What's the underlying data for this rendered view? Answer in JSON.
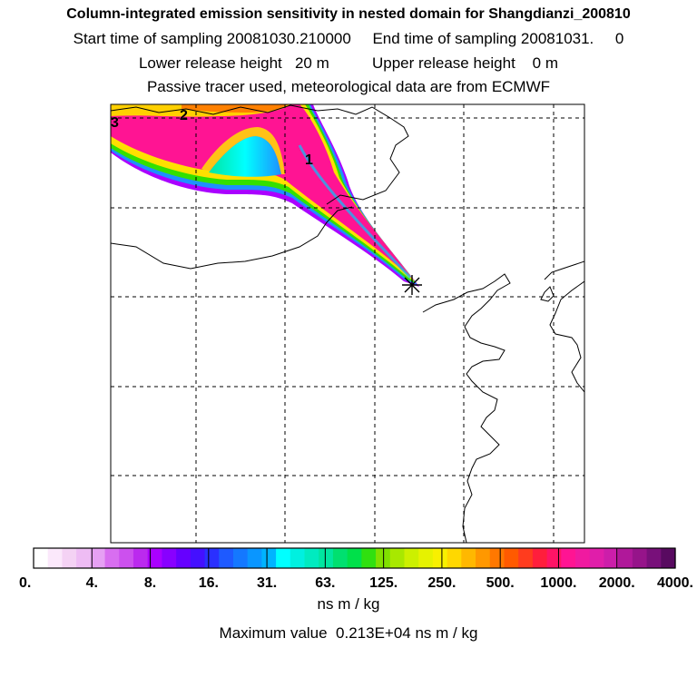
{
  "header": {
    "title": "Column-integrated emission sensitivity in nested domain for Shangdianzi_200810",
    "sampling": "Start time of sampling 20081030.210000     End time of sampling 20081031.     0",
    "release": "Lower release height   20 m          Upper release height    0 m",
    "tracer": "Passive tracer used, meteorological data are from ECMWF"
  },
  "map": {
    "contour_labels": [
      "1",
      "2",
      "3"
    ],
    "colors": {
      "plume_outer": "#ff1493",
      "plume_mid": "#ff2a9a",
      "yellow": "#ffe000",
      "orange": "#ff8000",
      "green": "#33e000",
      "cyan": "#00ffee",
      "blue": "#1e90ff",
      "violet": "#aa00ff"
    }
  },
  "colorbar": {
    "tick_labels": [
      "0.",
      "4.",
      "8.",
      "16.",
      "31.",
      "63.",
      "125.",
      "250.",
      "500.",
      "1000.",
      "2000.",
      "4000."
    ],
    "colors": [
      "#ffffff",
      "#fbe8fb",
      "#f4d2f4",
      "#eebcf4",
      "#e6a0f4",
      "#d86ef0",
      "#cc50ee",
      "#bb2aee",
      "#aa00ff",
      "#8800ff",
      "#6600ff",
      "#4410ff",
      "#2a30ff",
      "#1e5aff",
      "#1478ff",
      "#0a96ff",
      "#00b4ff",
      "#00ffff",
      "#00f0e0",
      "#00ebc0",
      "#00e6a0",
      "#00e070",
      "#00e04a",
      "#30e010",
      "#80e000",
      "#a8e800",
      "#ccf000",
      "#e6f200",
      "#f8f000",
      "#ffd800",
      "#ffb800",
      "#ff9800",
      "#ff7800",
      "#ff5a00",
      "#ff3c1e",
      "#ff1e3c",
      "#ff1466",
      "#ff1493",
      "#f01aa0",
      "#e01eaa",
      "#cc1eaa",
      "#b0189a",
      "#96148a",
      "#78107a",
      "#580a60"
    ],
    "units": "ns m / kg"
  },
  "footer": {
    "max_value": "Maximum value  0.213E+04 ns m / kg"
  }
}
